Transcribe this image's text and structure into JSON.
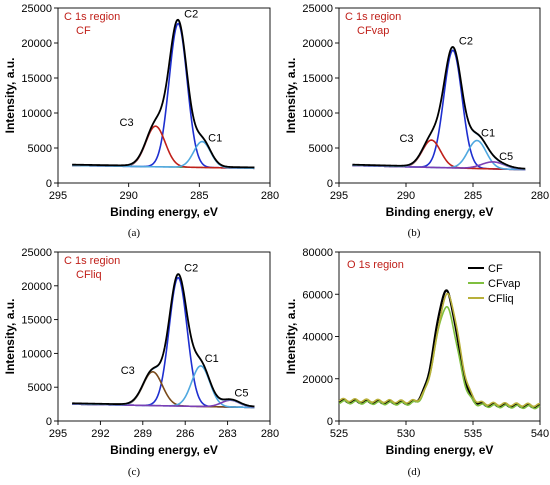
{
  "colors": {
    "envelope": "#000000",
    "baseline": "#2d7d2d",
    "c1": "#4fa8e0",
    "c2": "#1e2fd0",
    "c3": "#c0201a",
    "c3_liq": "#7a4a1a",
    "c5": "#7b3fb5",
    "fit": "#66aadd",
    "title": "#c0201a",
    "cf_o": "#000000",
    "cfvap_o": "#7fbf3f",
    "cfliq_o": "#b8b03a"
  },
  "chart_data": [
    {
      "id": "a",
      "type": "line",
      "panel_tag": "(a)",
      "title_line1": "C 1s region",
      "title_line2": "CF",
      "xlabel": "Binding energy, eV",
      "ylabel": "Intensity, a.u.",
      "xlim": [
        295,
        280
      ],
      "ylim": [
        0,
        25000
      ],
      "xticks": [
        295,
        290,
        285,
        280
      ],
      "yticks": [
        0,
        5000,
        10000,
        15000,
        20000,
        25000
      ],
      "baseline": [
        2500,
        2100
      ],
      "peaks": [
        {
          "name": "C2",
          "center": 286.5,
          "height": 20500,
          "fwhm": 1.5,
          "color_key": "c2"
        },
        {
          "name": "C3",
          "center": 288.1,
          "height": 5800,
          "fwhm": 1.6,
          "color_key": "c3"
        },
        {
          "name": "C1",
          "center": 284.8,
          "height": 3700,
          "fwhm": 1.4,
          "color_key": "c1"
        }
      ]
    },
    {
      "id": "b",
      "type": "line",
      "panel_tag": "(b)",
      "title_line1": "C 1s region",
      "title_line2": "CFvap",
      "xlabel": "Binding energy, eV",
      "ylabel": "Intensity, a.u.",
      "xlim": [
        295,
        280
      ],
      "ylim": [
        0,
        25000
      ],
      "xticks": [
        295,
        290,
        285,
        280
      ],
      "yticks": [
        0,
        5000,
        10000,
        15000,
        20000,
        25000
      ],
      "baseline": [
        2500,
        1900
      ],
      "peaks": [
        {
          "name": "C2",
          "center": 286.5,
          "height": 16800,
          "fwhm": 1.6,
          "color_key": "c2"
        },
        {
          "name": "C3",
          "center": 288.1,
          "height": 3900,
          "fwhm": 1.6,
          "color_key": "c3"
        },
        {
          "name": "C1",
          "center": 284.7,
          "height": 4000,
          "fwhm": 1.6,
          "color_key": "c1"
        },
        {
          "name": "C5",
          "center": 283.5,
          "height": 1000,
          "fwhm": 2.0,
          "color_key": "c5"
        }
      ]
    },
    {
      "id": "c",
      "type": "line",
      "panel_tag": "(c)",
      "title_line1": "C 1s region",
      "title_line2": "CFliq",
      "xlabel": "Binding energy, eV",
      "ylabel": "Intensity, a.u.",
      "xlim": [
        295,
        280
      ],
      "ylim": [
        0,
        25000
      ],
      "xticks": [
        295,
        292,
        289,
        286,
        283,
        280
      ],
      "yticks": [
        0,
        5000,
        10000,
        15000,
        20000,
        25000
      ],
      "baseline": [
        2500,
        2000
      ],
      "peaks": [
        {
          "name": "C2",
          "center": 286.5,
          "height": 19000,
          "fwhm": 1.5,
          "color_key": "c2"
        },
        {
          "name": "C3",
          "center": 288.3,
          "height": 5000,
          "fwhm": 1.6,
          "color_key": "c3_liq"
        },
        {
          "name": "C1",
          "center": 284.9,
          "height": 6000,
          "fwhm": 1.5,
          "color_key": "c1"
        },
        {
          "name": "C5",
          "center": 282.8,
          "height": 1000,
          "fwhm": 1.5,
          "color_key": "c5"
        }
      ]
    },
    {
      "id": "d",
      "type": "line",
      "panel_tag": "(d)",
      "title_line1": "O 1s region",
      "xlabel": "Binding energy, eV",
      "ylabel": "Intensity, a.u.",
      "xlim": [
        525,
        540
      ],
      "ylim": [
        0,
        80000
      ],
      "xticks": [
        525,
        530,
        535,
        540
      ],
      "yticks": [
        0,
        20000,
        40000,
        60000,
        80000
      ],
      "legend_position": "top-right",
      "series": [
        {
          "name": "CF",
          "center": 533.0,
          "height": 53000,
          "fwhm": 1.9,
          "baseline": [
            9500,
            7000
          ],
          "color_key": "cf_o",
          "width": 2.2
        },
        {
          "name": "CFvap",
          "center": 533.0,
          "height": 46000,
          "fwhm": 1.9,
          "baseline": [
            9000,
            6500
          ],
          "color_key": "cfvap_o",
          "width": 1.6
        },
        {
          "name": "CFliq",
          "center": 533.1,
          "height": 51000,
          "fwhm": 1.9,
          "baseline": [
            10000,
            7500
          ],
          "color_key": "cfliq_o",
          "width": 1.6
        }
      ]
    }
  ]
}
